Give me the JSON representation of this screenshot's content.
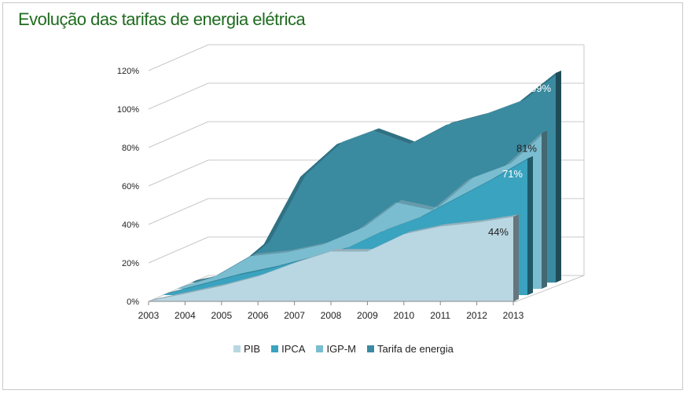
{
  "title": "Evolução das tarifas de energia elétrica",
  "chart_data": {
    "type": "area",
    "categories": [
      "2003",
      "2004",
      "2005",
      "2006",
      "2007",
      "2008",
      "2009",
      "2010",
      "2011",
      "2012",
      "2013"
    ],
    "y_ticks": [
      "0%",
      "20%",
      "40%",
      "60%",
      "80%",
      "100%",
      "120%"
    ],
    "ylim": [
      0,
      120
    ],
    "grid": true,
    "legend_position": "bottom",
    "series": [
      {
        "name": "PIB",
        "color": "#b9d7e3",
        "values": [
          0,
          4,
          8,
          13,
          20,
          26,
          26,
          35,
          39,
          41,
          44
        ],
        "end_label": "44%"
      },
      {
        "name": "IPCA",
        "color": "#3aa3bf",
        "values": [
          0,
          5,
          10,
          14,
          19,
          24,
          33,
          40,
          50,
          60,
          71
        ],
        "end_label": "71%"
      },
      {
        "name": "IGP-M",
        "color": "#7bbdd0",
        "values": [
          0,
          6,
          17,
          19,
          23,
          31,
          45,
          41,
          57,
          64,
          81
        ],
        "end_label": "81%"
      },
      {
        "name": "Tarifa de energia",
        "color": "#3a8aa0",
        "values": [
          0,
          4,
          20,
          55,
          72,
          79,
          72,
          82,
          87,
          94,
          109
        ],
        "end_label": "109%"
      }
    ]
  }
}
